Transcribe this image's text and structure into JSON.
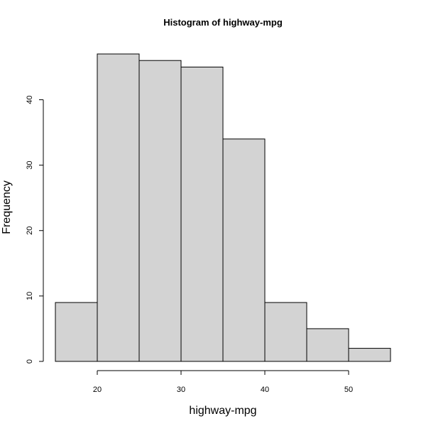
{
  "chart_data": {
    "type": "bar",
    "title": "Histogram of highway-mpg",
    "xlabel": "highway-mpg",
    "ylabel": "Frequency",
    "bins": [
      {
        "start": 15,
        "end": 20,
        "count": 9
      },
      {
        "start": 20,
        "end": 25,
        "count": 47
      },
      {
        "start": 25,
        "end": 30,
        "count": 46
      },
      {
        "start": 30,
        "end": 35,
        "count": 45
      },
      {
        "start": 35,
        "end": 40,
        "count": 34
      },
      {
        "start": 40,
        "end": 45,
        "count": 9
      },
      {
        "start": 45,
        "end": 50,
        "count": 5
      },
      {
        "start": 50,
        "end": 55,
        "count": 2
      }
    ],
    "xlim": [
      15,
      55
    ],
    "ylim": [
      0,
      47
    ],
    "x_ticks": [
      20,
      30,
      40,
      50
    ],
    "y_ticks": [
      0,
      10,
      20,
      30,
      40
    ],
    "grid": false,
    "bar_fill": "#d3d3d3",
    "bar_stroke": "#000000"
  }
}
